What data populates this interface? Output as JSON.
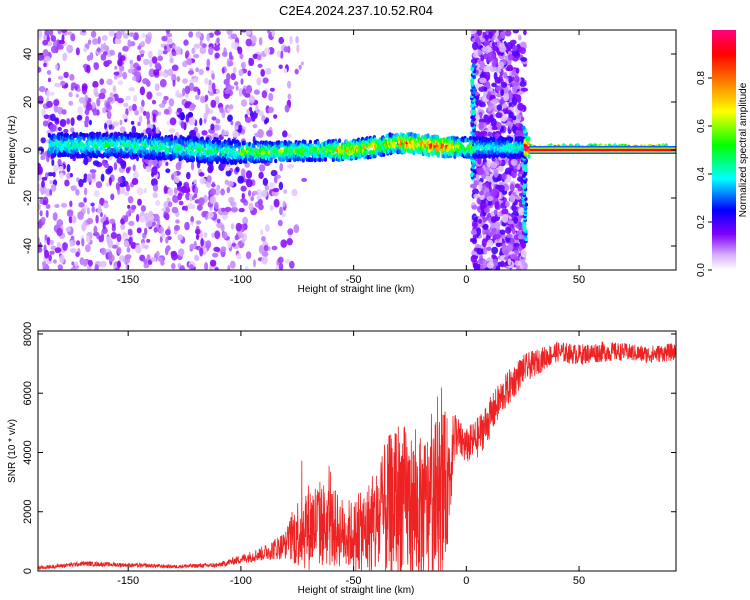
{
  "title": "C2E4.2024.237.10.52.R04",
  "chart_data": [
    {
      "type": "heatmap",
      "xlabel": "Height of straight line (km)",
      "ylabel": "Frequency (Hz)",
      "xlim": [
        -190,
        93
      ],
      "ylim": [
        -50,
        50
      ],
      "xticks": [
        -150,
        -100,
        -50,
        0,
        50
      ],
      "yticks": [
        -40,
        -20,
        0,
        20,
        40
      ],
      "xtick_labels": [
        "-150",
        "-100",
        "-50",
        "0",
        "50"
      ],
      "ytick_labels": [
        "-40",
        "-20",
        "0",
        "20",
        "40"
      ],
      "grid": false,
      "colorbar": {
        "label": "Normalized spectral amplitude",
        "range": [
          0,
          1
        ],
        "ticks": [
          0.0,
          0.2,
          0.4,
          0.6,
          0.8
        ],
        "tick_labels": [
          "0.0",
          "0.2",
          "0.4",
          "0.6",
          "0.8"
        ],
        "colors": [
          "#ffffff",
          "#d9b3ff",
          "#8000ff",
          "#0000ff",
          "#00ffff",
          "#00ff00",
          "#ffff00",
          "#ff8000",
          "#ff0000",
          "#ff0080"
        ]
      },
      "features": [
        {
          "name": "main band",
          "x_range": [
            -185,
            90
          ],
          "freq_center": [
            2,
            2,
            -1,
            0,
            3,
            1,
            1
          ],
          "freq_center_x": [
            -180,
            -150,
            -100,
            -50,
            -30,
            -5,
            90
          ],
          "peak_amplitude": 0.8
        },
        {
          "name": "broadband burst",
          "x_range": [
            3,
            26
          ],
          "freq_range": [
            -50,
            50
          ],
          "amplitude": 0.2
        },
        {
          "name": "scattered low-height noise",
          "x_range": [
            -190,
            -80
          ],
          "freq_range": [
            -50,
            50
          ],
          "amplitude": 0.1
        }
      ]
    },
    {
      "type": "line",
      "xlabel": "Height of straight line (km)",
      "ylabel": "SNR (10 * v/v)",
      "xlim": [
        -190,
        93
      ],
      "ylim": [
        0,
        8100
      ],
      "xticks": [
        -150,
        -100,
        -50,
        0,
        50
      ],
      "yticks": [
        0,
        2000,
        4000,
        6000,
        8000
      ],
      "xtick_labels": [
        "-150",
        "-100",
        "-50",
        "0",
        "50"
      ],
      "ytick_labels": [
        "0",
        "2000",
        "4000",
        "6000",
        "8000"
      ],
      "grid": false,
      "series_color": "#ee2222",
      "x": [
        -190,
        -170,
        -150,
        -130,
        -110,
        -100,
        -90,
        -80,
        -75,
        -70,
        -65,
        -60,
        -55,
        -50,
        -45,
        -40,
        -35,
        -30,
        -25,
        -20,
        -15,
        -10,
        -7,
        -5,
        -3,
        0,
        5,
        10,
        15,
        20,
        25,
        30,
        35,
        40,
        50,
        60,
        70,
        80,
        93
      ],
      "y": [
        100,
        250,
        200,
        150,
        200,
        400,
        600,
        900,
        1300,
        1500,
        1600,
        1500,
        1300,
        1200,
        1300,
        1600,
        2000,
        2400,
        2200,
        2000,
        2200,
        2500,
        3500,
        4700,
        4400,
        4200,
        4500,
        5100,
        5800,
        6300,
        6800,
        7000,
        7200,
        7400,
        7300,
        7400,
        7400,
        7300,
        7400
      ],
      "noise_amplitude": [
        60,
        80,
        70,
        60,
        80,
        150,
        250,
        500,
        1200,
        1500,
        1500,
        1400,
        1200,
        1200,
        1500,
        2000,
        2500,
        2800,
        2500,
        2500,
        2800,
        3000,
        1500,
        800,
        700,
        600,
        700,
        700,
        600,
        600,
        500,
        450,
        400,
        350,
        350,
        350,
        300,
        300,
        300
      ]
    }
  ]
}
